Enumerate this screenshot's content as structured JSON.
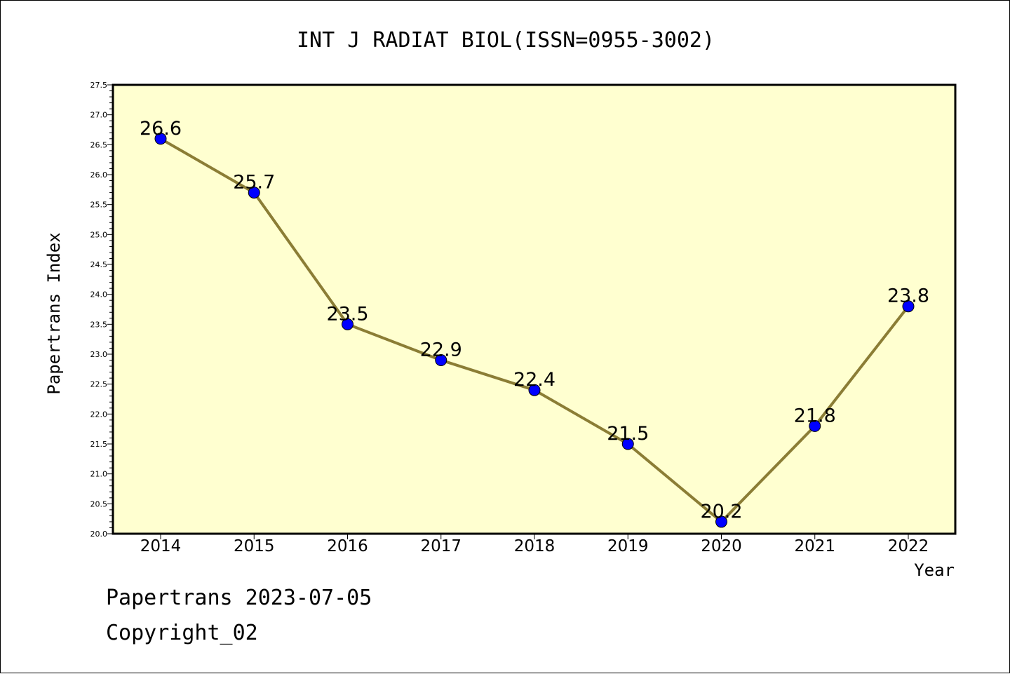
{
  "chart_data": {
    "type": "line",
    "title": "INT J RADIAT BIOL(ISSN=0955-3002)",
    "xlabel": "Year",
    "ylabel": "Papertrans Index",
    "categories": [
      "2014",
      "2015",
      "2016",
      "2017",
      "2018",
      "2019",
      "2020",
      "2021",
      "2022"
    ],
    "series": [
      {
        "values": [
          26.6,
          25.7,
          23.5,
          22.9,
          22.4,
          21.5,
          20.2,
          21.8,
          23.8
        ],
        "labels": [
          "26.6",
          "25.7",
          "23.5",
          "22.9",
          "22.4",
          "21.5",
          "20.2",
          "21.8",
          "23.8"
        ]
      }
    ],
    "ylim": [
      20.0,
      27.5
    ],
    "yticks": [
      "20.0",
      "20.5",
      "21.0",
      "21.5",
      "22.0",
      "22.5",
      "23.0",
      "23.5",
      "24.0",
      "24.5",
      "25.0",
      "25.5",
      "26.0",
      "26.5",
      "27.0",
      "27.5"
    ],
    "grid": false,
    "legend": "none",
    "colors": {
      "plot_background": "#ffffd0",
      "line": "#8b7d35",
      "marker": "#0000ff",
      "frame": "#000000"
    }
  },
  "footer": {
    "line1": "Papertrans 2023-07-05",
    "line2": "Copyright_02"
  }
}
